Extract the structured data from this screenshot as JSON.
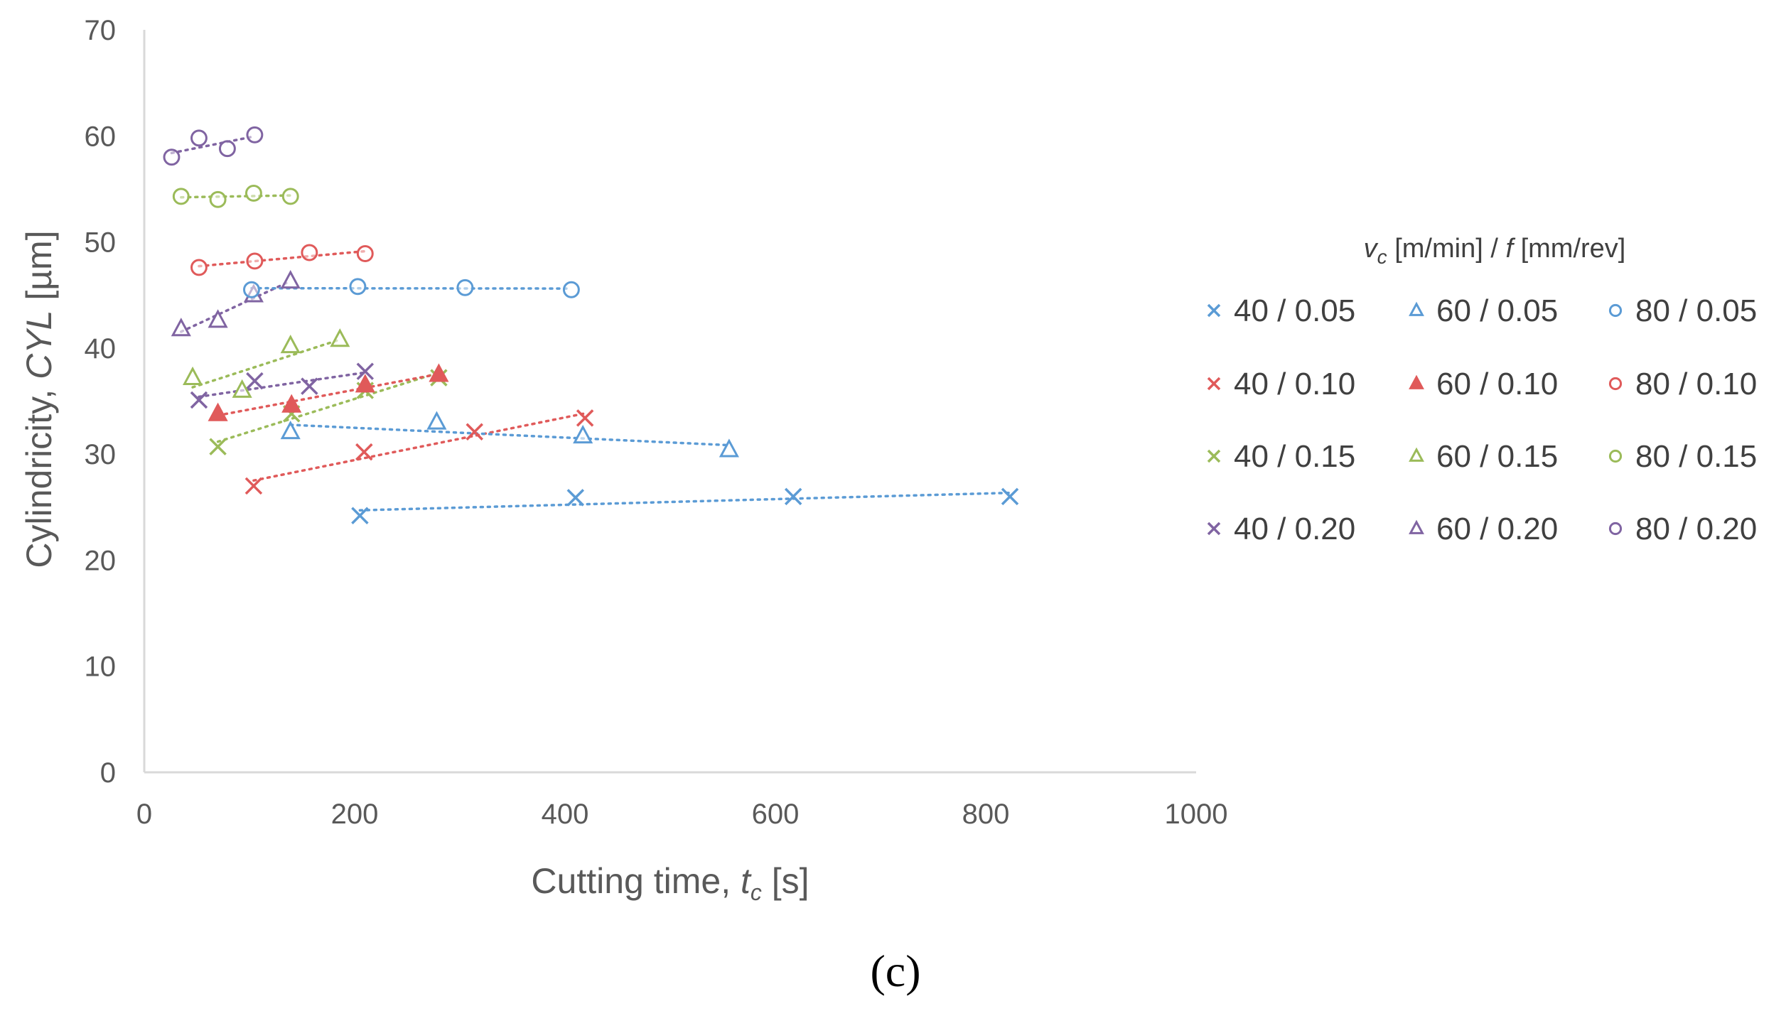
{
  "chart_data": {
    "type": "scatter",
    "xlabel": "Cutting time, ",
    "xlabel_var": "t",
    "xlabel_sub": "c",
    "xlabel_unit": " [s]",
    "ylabel": "Cylindricity, ",
    "ylabel_var": "CYL",
    "ylabel_unit": " [µm]",
    "xlim": [
      0,
      1000
    ],
    "ylim": [
      0,
      70
    ],
    "x_ticks": [
      "0",
      "200",
      "400",
      "600",
      "800",
      "1000"
    ],
    "y_ticks": [
      "0",
      "10",
      "20",
      "30",
      "40",
      "50",
      "60",
      "70"
    ],
    "grid": false,
    "legend_title": {
      "var": "v",
      "sub": "c",
      "mid": " [m/min] / ",
      "var2": "f",
      "end": " [mm/rev]"
    },
    "legend_position": "right",
    "panel_label": "(c)",
    "series": [
      {
        "name": "40 / 0.05",
        "color": "#5b9bd5",
        "marker": "x",
        "filled": false,
        "x": [
          205,
          410,
          617,
          823
        ],
        "y": [
          24.2,
          25.9,
          26.0,
          26.0
        ]
      },
      {
        "name": "40 / 0.10",
        "color": "#e05a5a",
        "marker": "x",
        "filled": false,
        "x": [
          104,
          209,
          314,
          419
        ],
        "y": [
          27.0,
          30.2,
          32.1,
          33.4
        ]
      },
      {
        "name": "40 / 0.15",
        "color": "#9bbb59",
        "marker": "x",
        "filled": false,
        "x": [
          70,
          140,
          210,
          280
        ],
        "y": [
          30.7,
          33.8,
          36.0,
          37.2
        ]
      },
      {
        "name": "40 / 0.20",
        "color": "#8064a2",
        "marker": "x",
        "filled": false,
        "x": [
          52,
          105,
          157,
          210
        ],
        "y": [
          35.1,
          36.9,
          36.4,
          37.8
        ]
      },
      {
        "name": "60 / 0.05",
        "color": "#5b9bd5",
        "marker": "triangle",
        "filled": false,
        "x": [
          139,
          278,
          417,
          556
        ],
        "y": [
          32.1,
          33.0,
          31.7,
          30.4
        ]
      },
      {
        "name": "60 / 0.10",
        "color": "#e05a5a",
        "marker": "triangle",
        "filled": true,
        "x": [
          70,
          140,
          210,
          280
        ],
        "y": [
          33.8,
          34.6,
          36.5,
          37.5
        ]
      },
      {
        "name": "60 / 0.15",
        "color": "#9bbb59",
        "marker": "triangle",
        "filled": false,
        "x": [
          46,
          93,
          139,
          186
        ],
        "y": [
          37.2,
          36.0,
          40.2,
          40.8
        ]
      },
      {
        "name": "60 / 0.20",
        "color": "#8064a2",
        "marker": "triangle",
        "filled": false,
        "x": [
          35,
          70,
          104,
          139
        ],
        "y": [
          41.8,
          42.6,
          45.0,
          46.3
        ]
      },
      {
        "name": "80 / 0.05",
        "color": "#5b9bd5",
        "marker": "circle",
        "filled": false,
        "x": [
          102,
          203,
          305,
          406
        ],
        "y": [
          45.5,
          45.8,
          45.7,
          45.5
        ]
      },
      {
        "name": "80 / 0.10",
        "color": "#e05a5a",
        "marker": "circle",
        "filled": false,
        "x": [
          52,
          105,
          157,
          210
        ],
        "y": [
          47.6,
          48.2,
          49.0,
          48.9
        ]
      },
      {
        "name": "80 / 0.15",
        "color": "#9bbb59",
        "marker": "circle",
        "filled": false,
        "x": [
          35,
          70,
          104,
          139
        ],
        "y": [
          54.3,
          54.0,
          54.6,
          54.3
        ]
      },
      {
        "name": "80 / 0.20",
        "color": "#8064a2",
        "marker": "circle",
        "filled": false,
        "x": [
          26,
          52,
          79,
          105
        ],
        "y": [
          58.0,
          59.8,
          58.8,
          60.1
        ]
      }
    ]
  }
}
